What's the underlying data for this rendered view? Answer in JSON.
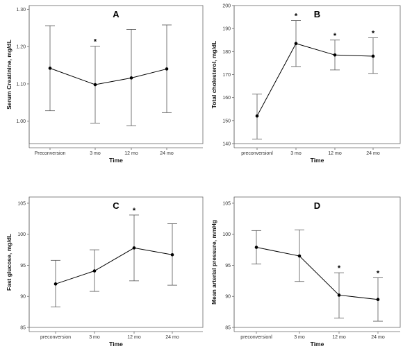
{
  "chart_data": [
    {
      "panel": "A",
      "type": "line",
      "xlabel": "Time",
      "ylabel": "Serum Creatinine, mg/dL",
      "categories": [
        "Preconversion",
        "3 mo",
        "12 mo",
        "24 mo"
      ],
      "values": [
        1.142,
        1.098,
        1.116,
        1.14
      ],
      "error_low": [
        1.028,
        0.995,
        0.988,
        1.023
      ],
      "error_high": [
        1.256,
        1.201,
        1.246,
        1.258
      ],
      "significance": [
        "",
        "*",
        "",
        ""
      ],
      "ylim": [
        0.94,
        1.31
      ],
      "yticks": [
        1.0,
        1.1,
        1.2,
        1.3
      ],
      "ytick_labels": [
        "1.00",
        "1.10",
        "1.20",
        "1.30"
      ]
    },
    {
      "panel": "B",
      "type": "line",
      "xlabel": "Time",
      "ylabel": "Total cholesterol, mg/dL",
      "categories": [
        "preconversionl",
        "3 mo",
        "12 mo",
        "24 mo"
      ],
      "values": [
        152,
        183.5,
        178.5,
        178
      ],
      "error_low": [
        142,
        173.5,
        172,
        170.5
      ],
      "error_high": [
        161.5,
        193.5,
        185,
        186
      ],
      "significance": [
        "",
        "*",
        "*",
        "*"
      ],
      "ylim": [
        140,
        200
      ],
      "yticks": [
        140,
        150,
        160,
        170,
        180,
        190,
        200
      ],
      "ytick_labels": [
        "140",
        "150",
        "160",
        "170",
        "180",
        "190",
        "200"
      ]
    },
    {
      "panel": "C",
      "type": "line",
      "xlabel": "Time",
      "ylabel": "Fast glucose, mg/dL",
      "categories": [
        "preconversion",
        "3 mo",
        "12 mo",
        "24 mo"
      ],
      "values": [
        92,
        94.1,
        97.8,
        96.7
      ],
      "error_low": [
        88.3,
        90.8,
        92.5,
        91.8
      ],
      "error_high": [
        95.8,
        97.5,
        103.1,
        101.7
      ],
      "significance": [
        "",
        "",
        "*",
        ""
      ],
      "ylim": [
        85,
        106
      ],
      "yticks": [
        85,
        90,
        95,
        100,
        105
      ],
      "ytick_labels": [
        "85",
        "90",
        "95",
        "100",
        "105"
      ]
    },
    {
      "panel": "D",
      "type": "line",
      "xlabel": "Time",
      "ylabel": "Mean arterial pressure, mmHg",
      "categories": [
        "preconversionl",
        "3 mo",
        "12 mo",
        "24 mo"
      ],
      "values": [
        97.9,
        96.5,
        90.2,
        89.5
      ],
      "error_low": [
        95.2,
        92.4,
        86.5,
        86
      ],
      "error_high": [
        100.6,
        100.7,
        93.8,
        93
      ],
      "significance": [
        "",
        "",
        "*",
        "*"
      ],
      "ylim": [
        85,
        106
      ],
      "yticks": [
        85,
        90,
        95,
        100,
        105
      ],
      "ytick_labels": [
        "85",
        "90",
        "95",
        "100",
        "105"
      ]
    }
  ]
}
